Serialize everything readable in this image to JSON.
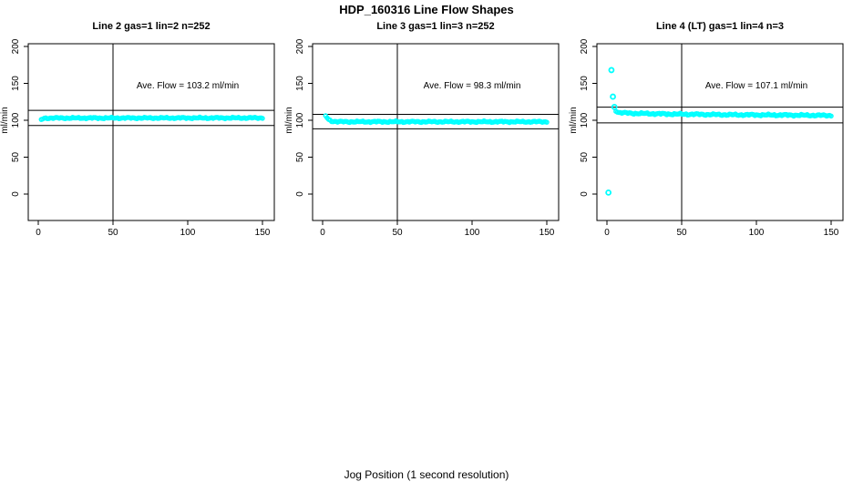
{
  "page": {
    "title": "HDP_160316  Line Flow Shapes",
    "xlabel": "Jog Position (1 second resolution)"
  },
  "colors": {
    "points": "#00FFFF",
    "axis": "#000000",
    "background": "#FFFFFF"
  },
  "chart_data": [
    {
      "type": "scatter",
      "title": "Line 2 gas=1 lin=2 n=252",
      "n": 252,
      "ave_flow": 103.2,
      "ave_flow_label": "Ave. Flow =  103.2  ml/min",
      "ylabel": "ml/min",
      "x_ticks": [
        0,
        50,
        100,
        150
      ],
      "y_ticks": [
        0,
        50,
        100,
        150,
        200
      ],
      "xlim": [
        0,
        150
      ],
      "ylim": [
        -35,
        205
      ],
      "vline_x": 50,
      "ref_lines": [
        113.5,
        92.9
      ],
      "profile": [
        [
          2,
          100.8
        ],
        [
          3,
          102.0
        ],
        [
          5,
          103.0
        ],
        [
          150,
          103.2
        ]
      ],
      "outliers": [],
      "jitter": 1.2,
      "x_step": 1
    },
    {
      "type": "scatter",
      "title": "Line 3 gas=1 lin=3 n=252",
      "n": 252,
      "ave_flow": 98.3,
      "ave_flow_label": "Ave. Flow =  98.3  ml/min",
      "ylabel": "ml/min",
      "x_ticks": [
        0,
        50,
        100,
        150
      ],
      "y_ticks": [
        0,
        50,
        100,
        150,
        200
      ],
      "xlim": [
        0,
        150
      ],
      "ylim": [
        -35,
        205
      ],
      "vline_x": 50,
      "ref_lines": [
        108.1,
        88.5
      ],
      "profile": [
        [
          2,
          106.0
        ],
        [
          3,
          103.5
        ],
        [
          4,
          101.0
        ],
        [
          6,
          99.0
        ],
        [
          10,
          98.0
        ],
        [
          150,
          98.0
        ]
      ],
      "outliers": [],
      "jitter": 1.2,
      "x_step": 1
    },
    {
      "type": "scatter",
      "title": "Line 4 (LT) gas=1 lin=4 n=3",
      "n": 3,
      "ave_flow": 107.1,
      "ave_flow_label": "Ave. Flow =  107.1  ml/min",
      "ylabel": "ml/min",
      "x_ticks": [
        0,
        50,
        100,
        150
      ],
      "y_ticks": [
        0,
        50,
        100,
        150,
        200
      ],
      "xlim": [
        0,
        150
      ],
      "ylim": [
        -35,
        205
      ],
      "vline_x": 50,
      "ref_lines": [
        117.8,
        96.4
      ],
      "profile": [
        [
          6,
          113.0
        ],
        [
          8,
          110.5
        ],
        [
          15,
          109.5
        ],
        [
          40,
          108.5
        ],
        [
          80,
          107.5
        ],
        [
          120,
          107.0
        ],
        [
          150,
          106.5
        ]
      ],
      "outliers": [
        [
          1,
          2
        ],
        [
          3,
          168
        ],
        [
          4,
          132
        ],
        [
          5,
          118
        ]
      ],
      "jitter": 1.4,
      "x_step": 1
    }
  ]
}
